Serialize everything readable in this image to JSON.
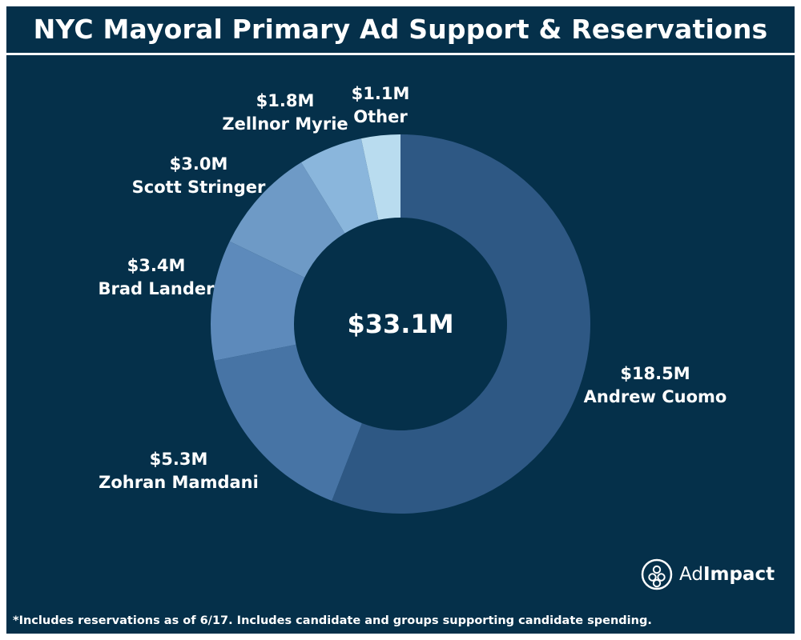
{
  "header": {
    "title": "NYC Mayoral Primary Ad Support & Reservations"
  },
  "chart_data": {
    "type": "pie",
    "variant": "donut",
    "center_label": "$33.1M",
    "total": 33.1,
    "unit": "$M",
    "slices": [
      {
        "name": "Andrew Cuomo",
        "value": 18.5,
        "label": "$18.5M",
        "color": "#2e5884"
      },
      {
        "name": "Zohran Mamdani",
        "value": 5.3,
        "label": "$5.3M",
        "color": "#4774a5"
      },
      {
        "name": "Brad Lander",
        "value": 3.4,
        "label": "$3.4M",
        "color": "#5d8abb"
      },
      {
        "name": "Scott Stringer",
        "value": 3.0,
        "label": "$3.0M",
        "color": "#6e9ac6"
      },
      {
        "name": "Zellnor Myrie",
        "value": 1.8,
        "label": "$1.8M",
        "color": "#8ab6dc"
      },
      {
        "name": "Other",
        "value": 1.1,
        "label": "$1.1M",
        "color": "#b9dcef"
      }
    ],
    "start_angle": "12 o'clock",
    "direction": "clockwise"
  },
  "footer": {
    "footnote": "*Includes reservations as of 6/17. Includes candidate and groups supporting candidate spending."
  },
  "brand": {
    "name_part1": "Ad",
    "name_part2": "Impact",
    "logo_icon": "admpact-logo-icon"
  },
  "colors": {
    "background": "#05304a",
    "text": "#ffffff"
  }
}
